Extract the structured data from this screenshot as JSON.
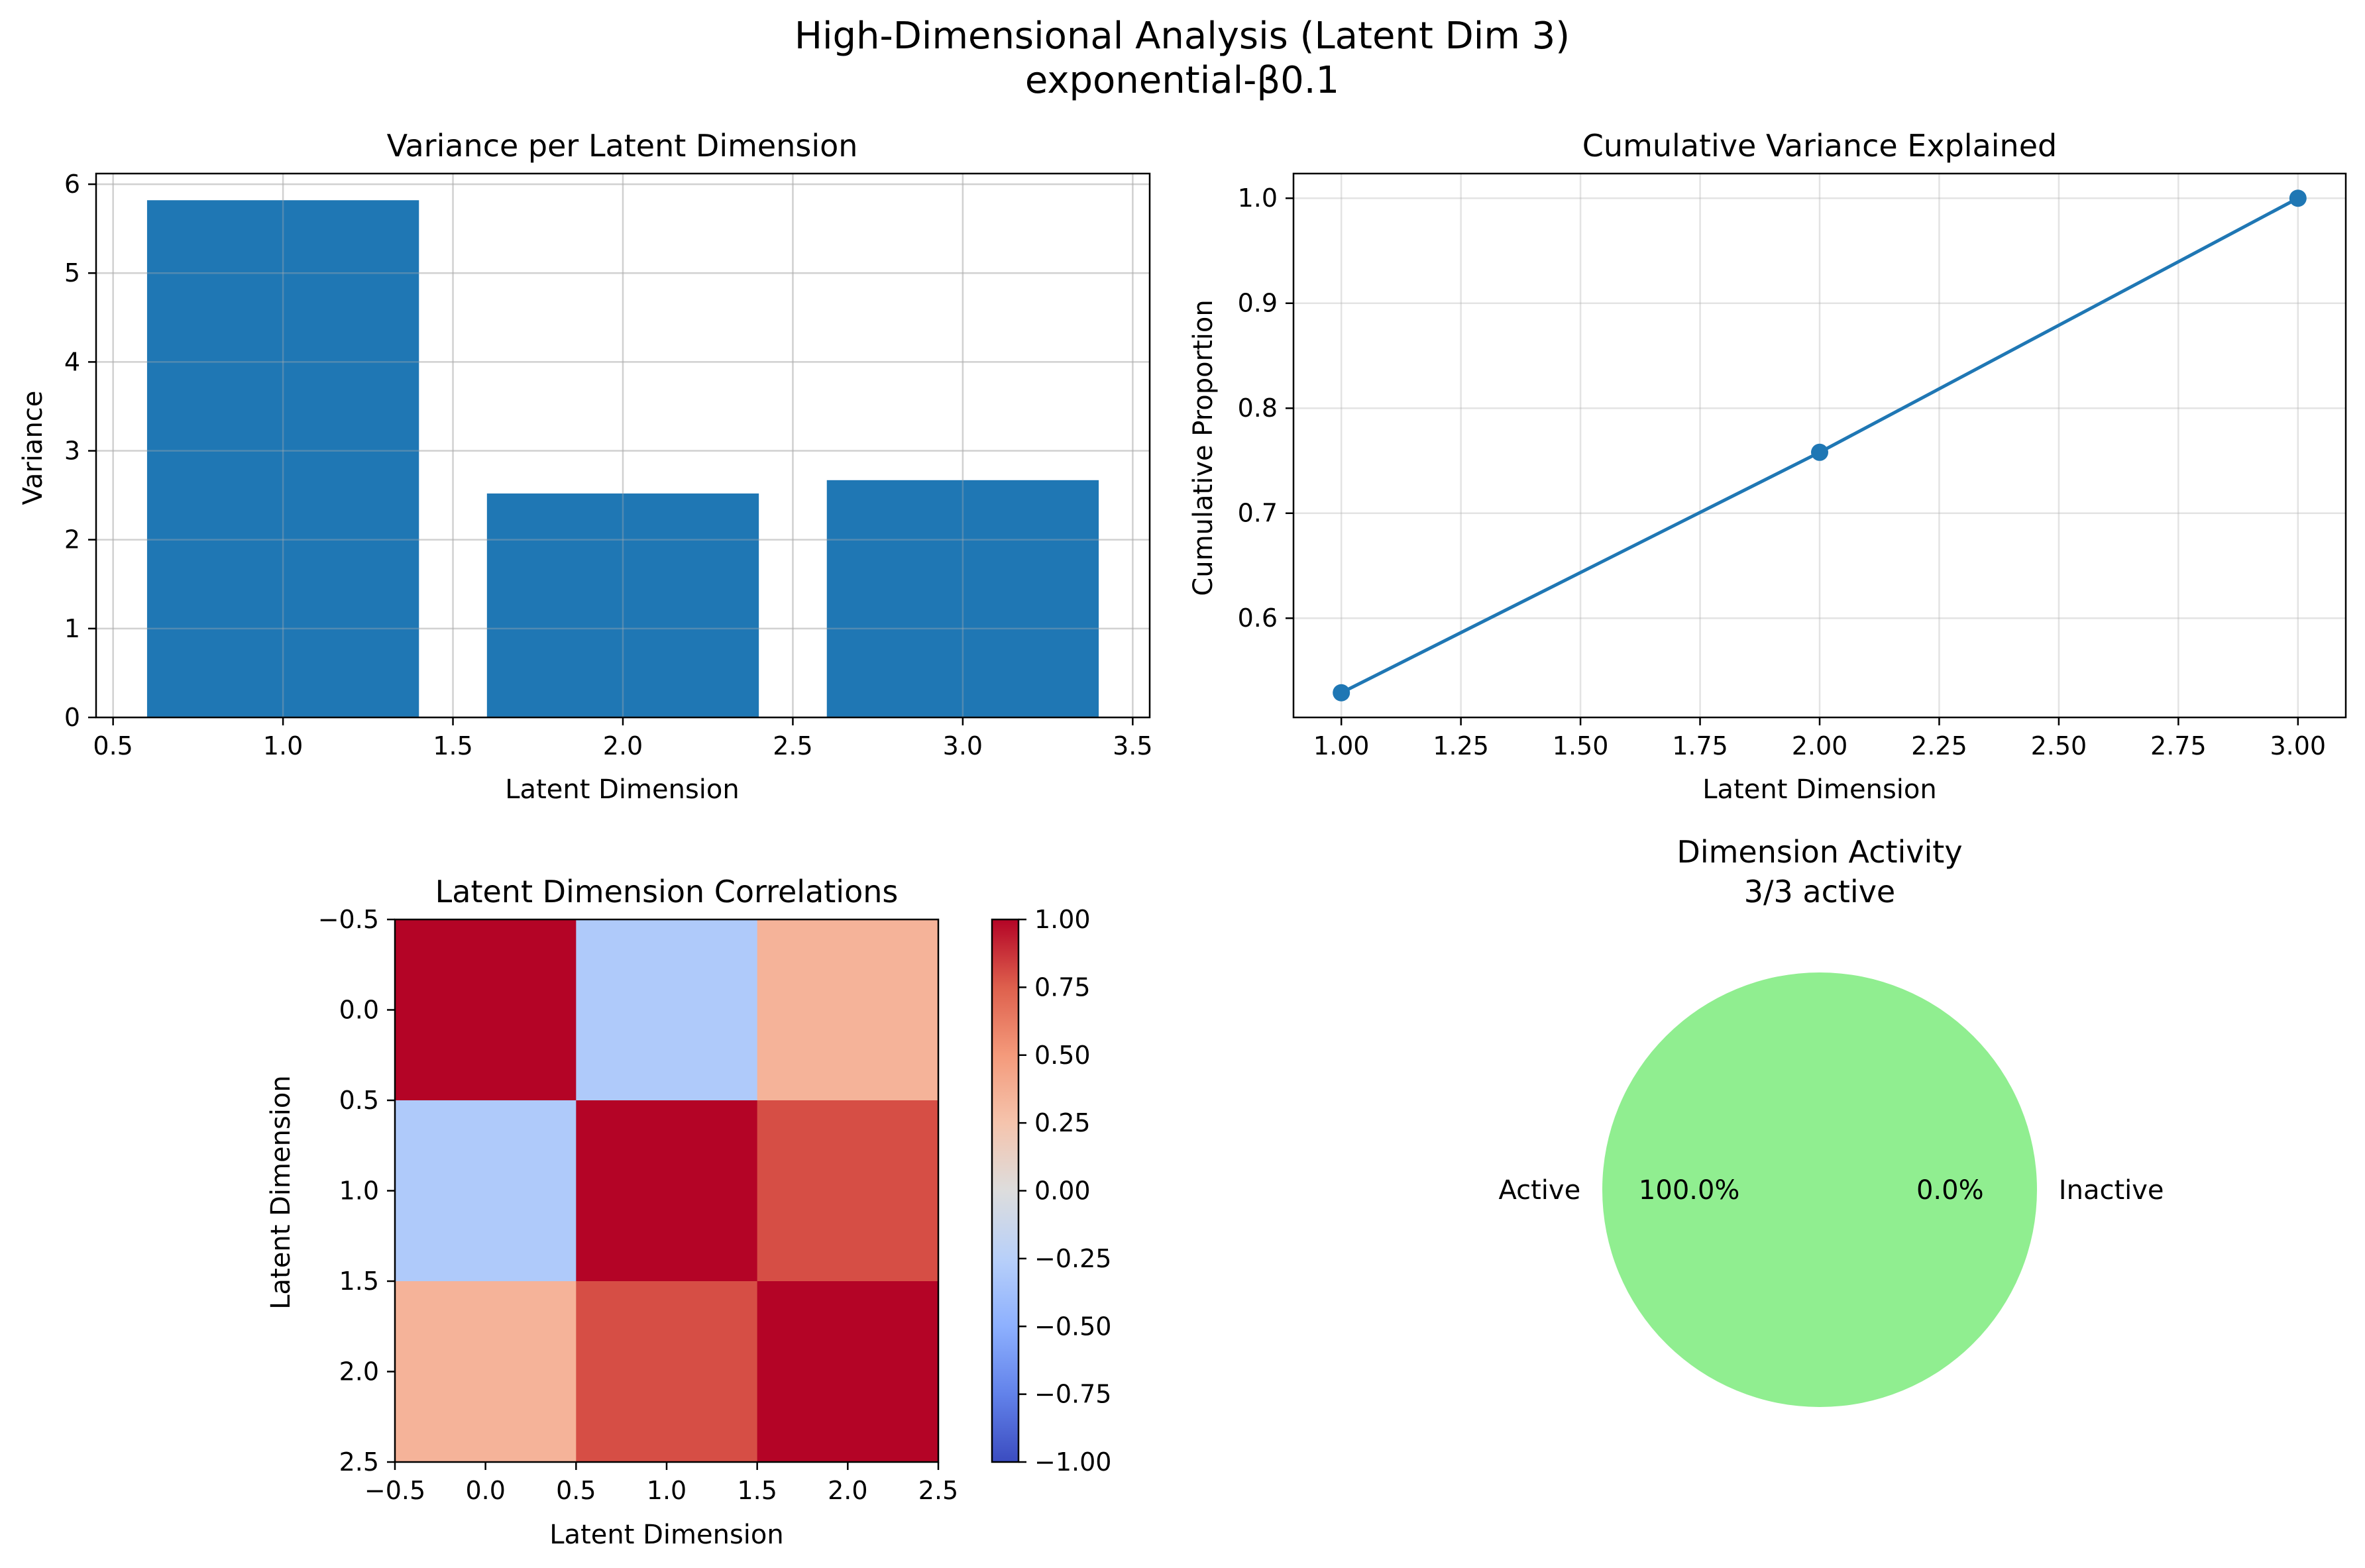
{
  "figure": {
    "title_line1": "High-Dimensional Analysis (Latent Dim 3)",
    "title_line2": "exponential-β0.1"
  },
  "chart_data": [
    {
      "type": "bar",
      "title": "Variance per Latent Dimension",
      "xlabel": "Latent Dimension",
      "ylabel": "Variance",
      "x": [
        1,
        2,
        3
      ],
      "values": [
        5.82,
        2.52,
        2.67
      ],
      "bar_width": 0.8,
      "xlim": [
        0.5,
        3.5
      ],
      "ylim": [
        0,
        6
      ],
      "xticks": [
        "0.5",
        "1.0",
        "1.5",
        "2.0",
        "2.5",
        "3.0",
        "3.5"
      ],
      "yticks": [
        "0",
        "1",
        "2",
        "3",
        "4",
        "5",
        "6"
      ],
      "color": "#1f77b4",
      "grid": true
    },
    {
      "type": "line",
      "title": "Cumulative Variance Explained",
      "xlabel": "Latent Dimension",
      "ylabel": "Cumulative Proportion",
      "x": [
        1,
        2,
        3
      ],
      "y": [
        0.529,
        0.758,
        1.0
      ],
      "xlim": [
        1.0,
        3.0
      ],
      "ylim": [
        0.6,
        1.0
      ],
      "xticks": [
        "1.00",
        "1.25",
        "1.50",
        "1.75",
        "2.00",
        "2.25",
        "2.50",
        "2.75",
        "3.00"
      ],
      "yticks": [
        "0.6",
        "0.7",
        "0.8",
        "0.9",
        "1.0"
      ],
      "color": "#1f77b4",
      "marker": "circle",
      "grid": true
    },
    {
      "type": "heatmap",
      "title": "Latent Dimension Correlations",
      "xlabel": "Latent Dimension",
      "ylabel": "Latent Dimension",
      "matrix": [
        [
          1.0,
          -0.3,
          0.35
        ],
        [
          -0.3,
          1.0,
          0.8
        ],
        [
          0.35,
          0.8,
          1.0
        ]
      ],
      "colormap": "coolwarm",
      "vmin": -1.0,
      "vmax": 1.0,
      "xlim": [
        -0.5,
        2.5
      ],
      "ylim": [
        2.5,
        -0.5
      ],
      "xticks": [
        "−0.5",
        "0.0",
        "0.5",
        "1.0",
        "1.5",
        "2.0",
        "2.5"
      ],
      "yticks": [
        "−0.5",
        "0.0",
        "0.5",
        "1.0",
        "1.5",
        "2.0",
        "2.5"
      ],
      "colorbar_ticks": [
        "1.00",
        "0.75",
        "0.50",
        "0.25",
        "0.00",
        "−0.25",
        "−0.50",
        "−0.75",
        "−1.00"
      ]
    },
    {
      "type": "pie",
      "title_line1": "Dimension Activity",
      "title_line2": "3/3 active",
      "labels": [
        "Active",
        "Inactive"
      ],
      "values": [
        3,
        0
      ],
      "pct_labels": [
        "100.0%",
        "0.0%"
      ],
      "colors": [
        "#90ee90",
        "#f08080"
      ]
    }
  ]
}
